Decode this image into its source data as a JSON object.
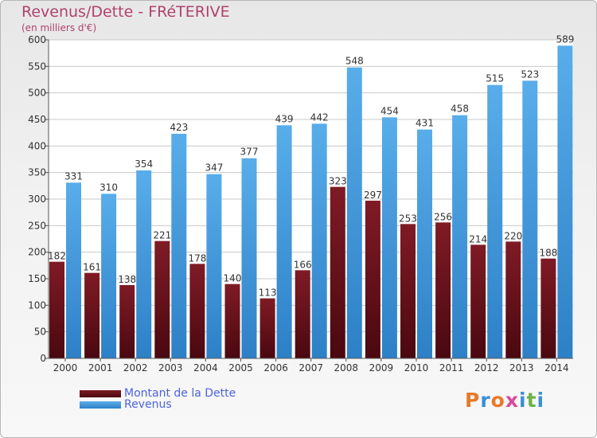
{
  "title": "Revenus/Dette - FRéTERIVE",
  "subtitle": "(en milliers d'€)",
  "colors": {
    "title": "#b0426e",
    "debt": "#6e1520",
    "revenue": "#3f97dc",
    "legend_text": "#4a63e0"
  },
  "legend": {
    "debt_label": "Montant de la Dette",
    "revenue_label": "Revenus"
  },
  "logo": {
    "letters": [
      "P",
      "r",
      "o",
      "x",
      "i",
      "t",
      "i"
    ],
    "colors": [
      "#e8792a",
      "#3a8fd6",
      "#e8792a",
      "#d94a9c",
      "#3a8fd6",
      "#6bb34a",
      "#3a8fd6"
    ]
  },
  "chart_data": {
    "type": "bar",
    "categories": [
      "2000",
      "2001",
      "2002",
      "2003",
      "2004",
      "2005",
      "2006",
      "2007",
      "2008",
      "2009",
      "2010",
      "2011",
      "2012",
      "2013",
      "2014"
    ],
    "series": [
      {
        "name": "Montant de la Dette",
        "values": [
          182,
          161,
          138,
          221,
          178,
          140,
          113,
          166,
          323,
          297,
          253,
          256,
          214,
          220,
          188
        ]
      },
      {
        "name": "Revenus",
        "values": [
          331,
          310,
          354,
          423,
          347,
          377,
          439,
          442,
          548,
          454,
          431,
          458,
          515,
          523,
          589
        ]
      }
    ],
    "ylim": [
      0,
      600
    ],
    "yticks": [
      0,
      50,
      100,
      150,
      200,
      250,
      300,
      350,
      400,
      450,
      500,
      550,
      600
    ],
    "grid": true
  }
}
